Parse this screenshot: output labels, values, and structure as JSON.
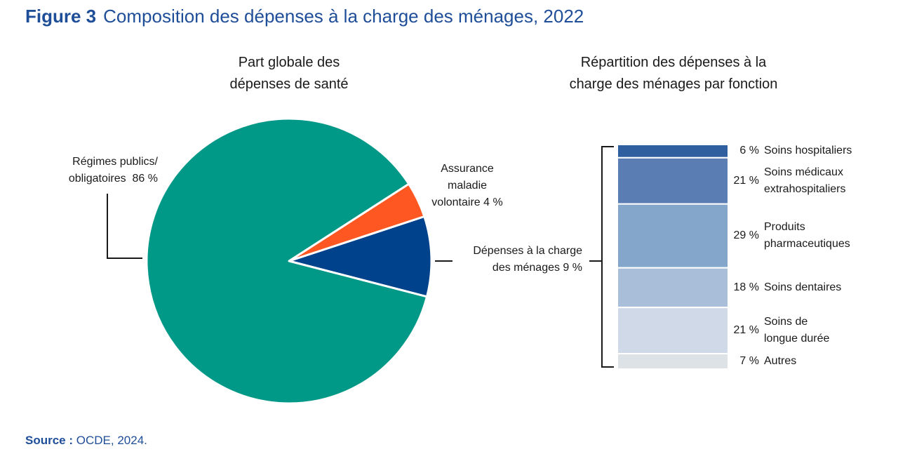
{
  "figure": {
    "number": "Figure 3",
    "title": "Composition des dépenses à la charge des ménages, 2022"
  },
  "source": {
    "label": "Source :",
    "text": "OCDE, 2024."
  },
  "colors": {
    "title": "#1f4e99",
    "public": "#009886",
    "voluntary": "#ff5722",
    "household": "#00428c"
  },
  "chart_data": [
    {
      "type": "pie",
      "title_lines": [
        "Part globale des",
        "dépenses de santé"
      ],
      "slices": [
        {
          "label_lines": [
            "Régimes publics/",
            "obligatoires  86 %"
          ],
          "value": 86,
          "color": "#009886"
        },
        {
          "label_lines": [
            "Assurance",
            "maladie",
            "volontaire 4 %"
          ],
          "value": 4,
          "color": "#ff5722"
        },
        {
          "label_lines": [
            "Dépenses à la charge",
            "des ménages 9 %"
          ],
          "value": 9,
          "color": "#00428c"
        }
      ]
    },
    {
      "type": "bar",
      "stacked": true,
      "title_lines": [
        "Répartition des dépenses à la",
        "charge des ménages par fonction"
      ],
      "segments": [
        {
          "pct": "6 %",
          "value": 6,
          "name_lines": [
            "Soins hospitaliers"
          ],
          "color": "#2f5f9e"
        },
        {
          "pct": "21 %",
          "value": 21,
          "name_lines": [
            "Soins médicaux",
            "extrahospitaliers"
          ],
          "color": "#5a7db4"
        },
        {
          "pct": "29 %",
          "value": 29,
          "name_lines": [
            "Produits",
            "pharmaceutiques"
          ],
          "color": "#84a6ca"
        },
        {
          "pct": "18 %",
          "value": 18,
          "name_lines": [
            "Soins dentaires"
          ],
          "color": "#a9bed9"
        },
        {
          "pct": "21 %",
          "value": 21,
          "name_lines": [
            "Soins de",
            "longue durée"
          ],
          "color": "#cfd9e7"
        },
        {
          "pct": "7 %",
          "value": 7,
          "name_lines": [
            "Autres"
          ],
          "color": "#dde2e7"
        }
      ]
    }
  ]
}
